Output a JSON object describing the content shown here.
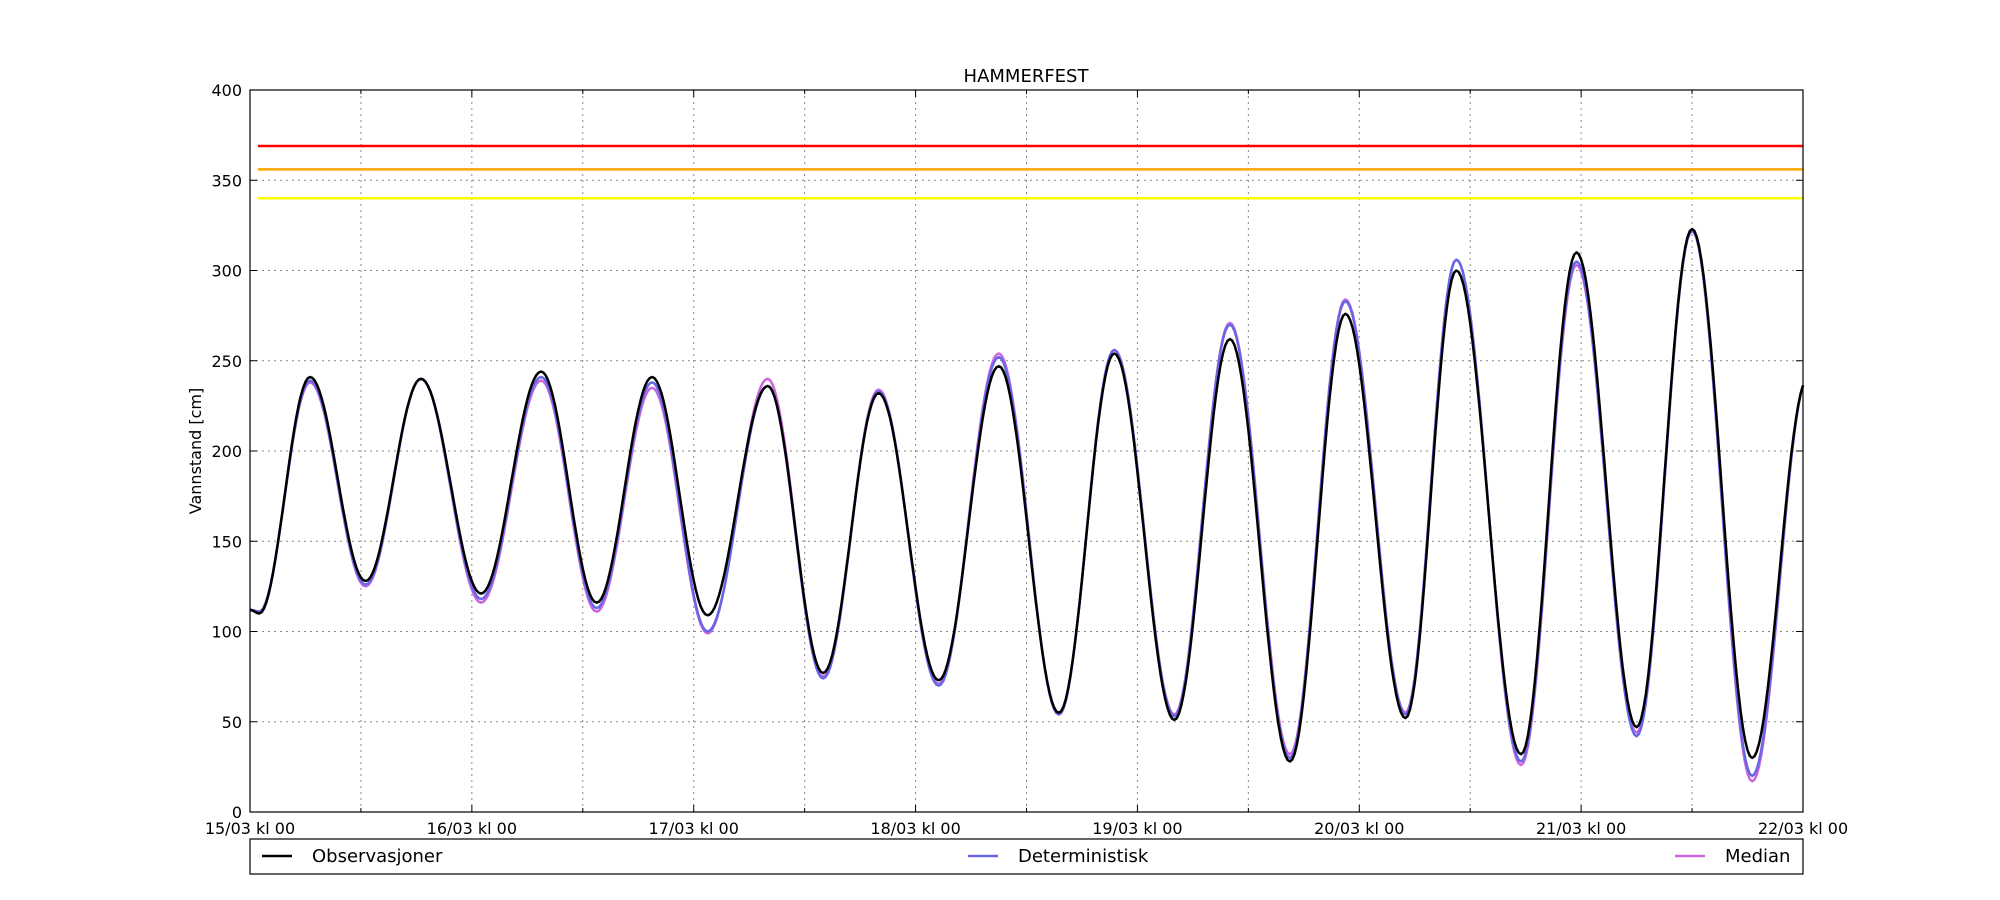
{
  "chart_data": {
    "type": "line",
    "title": "HAMMERFEST",
    "ylabel": "Vannstand [cm]",
    "xlabel": "",
    "ylim": [
      0,
      400
    ],
    "xlim_hours": [
      0,
      168
    ],
    "yticks": [
      0,
      50,
      100,
      150,
      200,
      250,
      300,
      350,
      400
    ],
    "xticks": [
      {
        "hour": 0,
        "label": "15/03 kl 00"
      },
      {
        "hour": 24,
        "label": "16/03 kl 00"
      },
      {
        "hour": 48,
        "label": "17/03 kl 00"
      },
      {
        "hour": 72,
        "label": "18/03 kl 00"
      },
      {
        "hour": 96,
        "label": "19/03 kl 00"
      },
      {
        "hour": 120,
        "label": "20/03 kl 00"
      },
      {
        "hour": 144,
        "label": "21/03 kl 00"
      },
      {
        "hour": 168,
        "label": "22/03 kl 00"
      }
    ],
    "minor_xticks_hours": [
      12,
      36,
      60,
      84,
      108,
      132,
      156
    ],
    "grid": true,
    "legend_position": "bottom",
    "thresholds": [
      {
        "value": 369,
        "color": "#ff0000"
      },
      {
        "value": 356,
        "color": "#ffa500"
      },
      {
        "value": 340,
        "color": "#ffff00"
      }
    ],
    "extrema_hours": [
      0,
      1,
      6.5,
      12.5,
      18.5,
      25,
      31.5,
      37.5,
      43.5,
      49.5,
      56,
      62,
      68,
      74.5,
      81,
      87.5,
      93.5,
      100,
      106,
      112.5,
      118.5,
      125,
      130.5,
      137.5,
      143.5,
      150,
      156,
      162.5,
      168.5
    ],
    "series": [
      {
        "name": "Observasjoner",
        "color": "#000000",
        "extrema_values": [
          112,
          110,
          241,
          128,
          240,
          121,
          244,
          116,
          241,
          109,
          236,
          77,
          232,
          73,
          247,
          55,
          254,
          51,
          262,
          28,
          276,
          52,
          300,
          32,
          310,
          47,
          323,
          30,
          240
        ]
      },
      {
        "name": "Deterministisk",
        "color": "#6666e6",
        "extrema_values": [
          112,
          111,
          239,
          126,
          240,
          118,
          241,
          113,
          238,
          100,
          236,
          74,
          233,
          70,
          252,
          54,
          256,
          53,
          270,
          30,
          283,
          54,
          306,
          28,
          305,
          42,
          322,
          20,
          240
        ]
      },
      {
        "name": "Median",
        "color": "#cc66dd",
        "extrema_values": [
          112,
          111,
          238,
          125,
          240,
          116,
          239,
          111,
          235,
          99,
          240,
          75,
          234,
          71,
          254,
          54,
          256,
          54,
          271,
          32,
          284,
          55,
          306,
          26,
          303,
          44,
          322,
          17,
          240
        ]
      }
    ]
  }
}
